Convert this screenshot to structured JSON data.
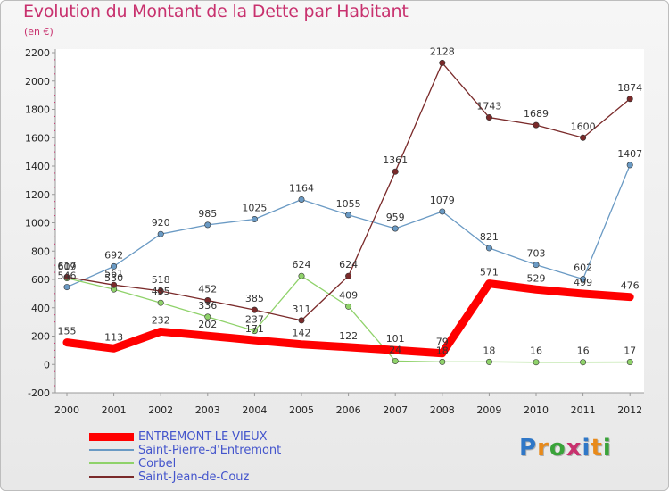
{
  "title": "Evolution du Montant de la Dette par Habitant",
  "unit": "(en €)",
  "logo": {
    "text": "Proxiti",
    "colors": [
      "#2f77c7",
      "#e88a1a",
      "#3aa33a",
      "#c8316e",
      "#2f77c7",
      "#e88a1a",
      "#3aa33a"
    ]
  },
  "chart_data": {
    "type": "line",
    "title": "Evolution du Montant de la Dette par Habitant",
    "ylabel": "(en €)",
    "xlabel": "",
    "x": [
      "2000",
      "2001",
      "2002",
      "2003",
      "2004",
      "2005",
      "2006",
      "2007",
      "2008",
      "2009",
      "2010",
      "2011",
      "2012"
    ],
    "ylim": [
      -200,
      2200
    ],
    "yticks": [
      "-200",
      "0",
      "200",
      "400",
      "600",
      "800",
      "1000",
      "1200",
      "1400",
      "1600",
      "1800",
      "2000",
      "2200"
    ],
    "grid": false,
    "legend_position": "bottom-left",
    "series": [
      {
        "name": "ENTREMONT-LE-VIEUX",
        "color": "#ff0000",
        "values": [
          155,
          113,
          232,
          202,
          171,
          142,
          122,
          101,
          79,
          571,
          529,
          499,
          476
        ],
        "labels": [
          "155",
          "113",
          "232",
          "202",
          "171",
          "142",
          "122",
          "101",
          "79",
          "571",
          "529",
          "499",
          "476"
        ]
      },
      {
        "name": "Saint-Pierre-d'Entremont",
        "color": "#6a9ac4",
        "values": [
          546,
          692,
          920,
          985,
          1025,
          1164,
          1055,
          959,
          1079,
          821,
          703,
          602,
          1407
        ],
        "labels": [
          "546",
          "692",
          "920",
          "985",
          "1025",
          "1164",
          "1055",
          "959",
          "1079",
          "821",
          "703",
          "602",
          "1407"
        ]
      },
      {
        "name": "Corbel",
        "color": "#8fd26a",
        "values": [
          609,
          530,
          435,
          336,
          237,
          624,
          409,
          24,
          18,
          18,
          16,
          16,
          17
        ],
        "labels": [
          "609",
          "530",
          "435",
          "336",
          "237",
          "624",
          "409",
          "24",
          "18",
          "18",
          "16",
          "16",
          "17"
        ]
      },
      {
        "name": "Saint-Jean-de-Couz",
        "color": "#7a2a2a",
        "values": [
          617,
          561,
          518,
          452,
          385,
          311,
          624,
          1361,
          2128,
          1743,
          1689,
          1600,
          1874
        ],
        "labels": [
          "617",
          "561",
          "518",
          "452",
          "385",
          "311",
          "624",
          "1361",
          "2128",
          "1743",
          "1689",
          "1600",
          "1874"
        ]
      }
    ]
  }
}
